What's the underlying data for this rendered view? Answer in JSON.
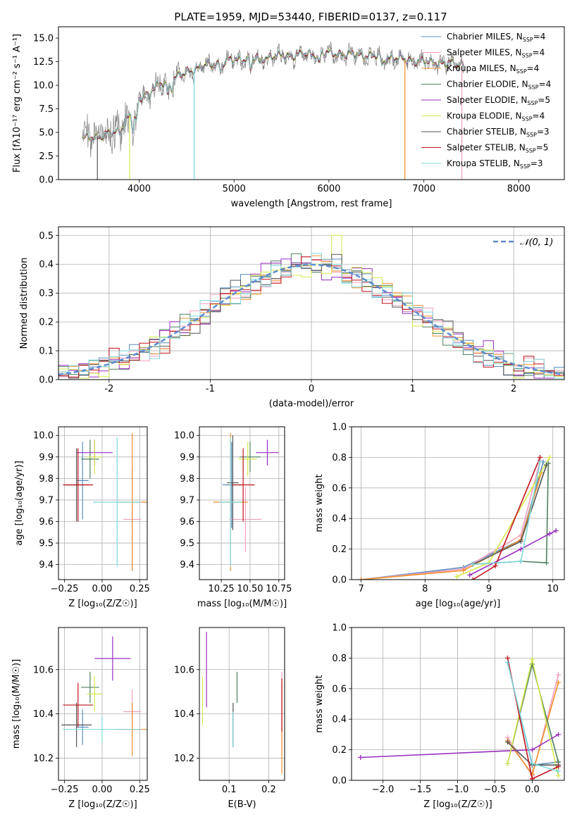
{
  "figure": {
    "title": "PLATE=1959, MJD=53440, FIBERID=0137, z=0.117"
  },
  "models": [
    {
      "label": "Chabrier MILES, N",
      "sub": "SSP",
      "n": "=4",
      "color": "#5b8fbf"
    },
    {
      "label": "Salpeter MILES, N",
      "sub": "SSP",
      "n": "=4",
      "color": "#f0a0c0"
    },
    {
      "label": "Kroupa MILES, N",
      "sub": "SSP",
      "n": "=4",
      "color": "#f28e2b"
    },
    {
      "label": "Chabrier ELODIE, N",
      "sub": "SSP",
      "n": "=4",
      "color": "#4f7f5f"
    },
    {
      "label": "Salpeter ELODIE, N",
      "sub": "SSP",
      "n": "=5",
      "color": "#9b30c0"
    },
    {
      "label": "Kroupa ELODIE, N",
      "sub": "SSP",
      "n": "=4",
      "color": "#d4e84a"
    },
    {
      "label": "Chabrier STELIB, N",
      "sub": "SSP",
      "n": "=3",
      "color": "#555555"
    },
    {
      "label": "Salpeter STELIB, N",
      "sub": "SSP",
      "n": "=5",
      "color": "#c0141c"
    },
    {
      "label": "Kroupa STELIB, N",
      "sub": "SSP",
      "n": "=3",
      "color": "#7fd8dc"
    }
  ],
  "chart_data": [
    {
      "id": "spectrum",
      "type": "line",
      "xlabel": "wavelength [Angstrom, rest frame]",
      "ylabel": "Flux [fλ10⁻¹⁷ erg cm⁻² s⁻¹ A⁻¹]",
      "xlim": [
        3150,
        8480
      ],
      "ylim": [
        0,
        16.2
      ],
      "xticks": [
        4000,
        5000,
        6000,
        7000,
        8000
      ],
      "yticks": [
        0.0,
        2.5,
        5.0,
        7.5,
        10.0,
        12.5,
        15.0
      ],
      "continuum": {
        "x": [
          3400,
          3600,
          3800,
          3950,
          4050,
          4300,
          4600,
          5000,
          5500,
          6000,
          6500,
          7000,
          7400
        ],
        "y": [
          4.4,
          4.6,
          5.2,
          7.6,
          9.2,
          10.4,
          11.8,
          12.7,
          13.1,
          13.4,
          13.1,
          12.5,
          12.2
        ]
      }
    },
    {
      "id": "residuals",
      "type": "histogram",
      "xlabel": "(data-model)/error",
      "ylabel": "Normed distribution",
      "xlim": [
        -2.5,
        2.5
      ],
      "ylim": [
        0,
        0.53
      ],
      "xticks": [
        -2,
        -1,
        0,
        1,
        2
      ],
      "yticks": [
        0.0,
        0.1,
        0.2,
        0.3,
        0.4,
        0.5
      ],
      "reference": {
        "name": "𝒩(0, 1)",
        "color": "#5b8bd0"
      }
    },
    {
      "id": "z-age",
      "type": "errorbar",
      "xlabel": "Z [log₁₀(Z/Z☉)]",
      "ylabel": "age  [log₁₀(age/yr)]",
      "xlim": [
        -0.29,
        0.3
      ],
      "ylim": [
        9.33,
        10.04
      ],
      "xticks": [
        -0.25,
        0.0,
        0.25
      ],
      "xticklabels": [
        "−0.25",
        "0.00",
        "0.25"
      ],
      "yticks": [
        9.4,
        9.5,
        9.6,
        9.7,
        9.8,
        9.9,
        10.0
      ],
      "points": [
        {
          "m": 0,
          "x": -0.13,
          "y": 9.79,
          "xe": 0.04,
          "ye": 0.18
        },
        {
          "m": 1,
          "x": 0.2,
          "y": 9.61,
          "xe": 0.06,
          "ye": 0.24
        },
        {
          "m": 2,
          "x": 0.2,
          "y": 9.69,
          "xe": 0.1,
          "ye": 0.32
        },
        {
          "m": 3,
          "x": -0.08,
          "y": 9.89,
          "xe": 0.06,
          "ye": 0.09
        },
        {
          "m": 4,
          "x": -0.05,
          "y": 9.92,
          "xe": 0.12,
          "ye": 0.06
        },
        {
          "m": 5,
          "x": -0.05,
          "y": 9.9,
          "xe": 0.05,
          "ye": 0.08
        },
        {
          "m": 6,
          "x": -0.17,
          "y": 9.77,
          "xe": 0.08,
          "ye": 0.17
        },
        {
          "m": 7,
          "x": -0.16,
          "y": 9.77,
          "xe": 0.1,
          "ye": 0.17
        },
        {
          "m": 8,
          "x": 0.1,
          "y": 9.69,
          "xe": 0.16,
          "ye": 0.3
        }
      ]
    },
    {
      "id": "mass-age",
      "type": "errorbar",
      "xlabel": "mass [log₁₀(M/M☉)]",
      "ylabel": "",
      "xlim": [
        10.06,
        10.8
      ],
      "ylim": [
        9.33,
        10.04
      ],
      "xticks": [
        10.25,
        10.5,
        10.75
      ],
      "xticklabels": [
        "10.25",
        "10.50",
        "10.75"
      ],
      "yticks": [
        9.4,
        9.5,
        9.6,
        9.7,
        9.8,
        9.9,
        10.0
      ],
      "points": [
        {
          "m": 0,
          "x": 10.34,
          "y": 9.77,
          "xe": 0.08,
          "ye": 0.2
        },
        {
          "m": 1,
          "x": 10.46,
          "y": 9.61,
          "xe": 0.14,
          "ye": 0.15
        },
        {
          "m": 2,
          "x": 10.33,
          "y": 9.69,
          "xe": 0.15,
          "ye": 0.32
        },
        {
          "m": 3,
          "x": 10.5,
          "y": 9.9,
          "xe": 0.09,
          "ye": 0.07
        },
        {
          "m": 4,
          "x": 10.65,
          "y": 9.92,
          "xe": 0.1,
          "ye": 0.06
        },
        {
          "m": 5,
          "x": 10.48,
          "y": 9.89,
          "xe": 0.08,
          "ye": 0.08
        },
        {
          "m": 6,
          "x": 10.35,
          "y": 9.78,
          "xe": 0.05,
          "ye": 0.22
        },
        {
          "m": 7,
          "x": 10.44,
          "y": 9.77,
          "xe": 0.1,
          "ye": 0.17
        },
        {
          "m": 8,
          "x": 10.33,
          "y": 9.69,
          "xe": 0.1,
          "ye": 0.3
        }
      ]
    },
    {
      "id": "age-weight",
      "type": "line",
      "xlabel": "age  [log₁₀(age/yr)]",
      "ylabel": "mass weight",
      "xlim": [
        6.85,
        10.18
      ],
      "ylim": [
        0,
        1.0
      ],
      "xticks": [
        7,
        8,
        9,
        10
      ],
      "yticks": [
        0.0,
        0.2,
        0.4,
        0.6,
        0.8,
        1.0
      ],
      "series": [
        {
          "m": 0,
          "x": [
            7.0,
            8.6,
            9.5,
            9.85
          ],
          "y": [
            0.0,
            0.08,
            0.26,
            0.77
          ]
        },
        {
          "m": 1,
          "x": [
            7.0,
            8.6,
            9.5,
            9.8
          ],
          "y": [
            0.0,
            0.07,
            0.29,
            0.78
          ]
        },
        {
          "m": 2,
          "x": [
            7.0,
            8.6,
            9.5,
            9.82
          ],
          "y": [
            0.0,
            0.06,
            0.26,
            0.7
          ]
        },
        {
          "m": 3,
          "x": [
            8.75,
            9.5,
            9.9,
            9.93
          ],
          "y": [
            0.1,
            0.12,
            0.11,
            0.76
          ]
        },
        {
          "m": 4,
          "x": [
            8.7,
            9.5,
            9.95,
            10.05
          ],
          "y": [
            0.03,
            0.2,
            0.3,
            0.32
          ]
        },
        {
          "m": 5,
          "x": [
            8.5,
            9.0,
            9.95
          ],
          "y": [
            0.02,
            0.11,
            0.8
          ]
        },
        {
          "m": 6,
          "x": [
            8.75,
            9.5,
            9.9
          ],
          "y": [
            0.1,
            0.25,
            0.75
          ]
        },
        {
          "m": 7,
          "x": [
            8.75,
            9.1,
            9.8
          ],
          "y": [
            0.0,
            0.09,
            0.8
          ]
        },
        {
          "m": 8,
          "x": [
            8.75,
            9.5,
            9.8
          ],
          "y": [
            0.1,
            0.12,
            0.77
          ]
        }
      ]
    },
    {
      "id": "z-mass",
      "type": "errorbar",
      "xlabel": "Z [log₁₀(Z/Z☉)]",
      "ylabel": "mass [log₁₀(M/M☉)]",
      "xlim": [
        -0.29,
        0.3
      ],
      "ylim": [
        10.1,
        10.79
      ],
      "xticks": [
        -0.25,
        0.0,
        0.25
      ],
      "xticklabels": [
        "−0.25",
        "0.00",
        "0.25"
      ],
      "yticks": [
        10.2,
        10.4,
        10.6
      ],
      "points": [
        {
          "m": 0,
          "x": -0.13,
          "y": 10.34,
          "xe": 0.04,
          "ye": 0.08
        },
        {
          "m": 1,
          "x": 0.2,
          "y": 10.41,
          "xe": 0.06,
          "ye": 0.1
        },
        {
          "m": 2,
          "x": 0.2,
          "y": 10.33,
          "xe": 0.1,
          "ye": 0.12
        },
        {
          "m": 3,
          "x": -0.08,
          "y": 10.52,
          "xe": 0.06,
          "ye": 0.07
        },
        {
          "m": 4,
          "x": 0.07,
          "y": 10.65,
          "xe": 0.12,
          "ye": 0.1
        },
        {
          "m": 5,
          "x": -0.05,
          "y": 10.49,
          "xe": 0.05,
          "ye": 0.08
        },
        {
          "m": 6,
          "x": -0.17,
          "y": 10.35,
          "xe": 0.1,
          "ye": 0.1
        },
        {
          "m": 7,
          "x": -0.16,
          "y": 10.44,
          "xe": 0.1,
          "ye": 0.1
        },
        {
          "m": 8,
          "x": 0.0,
          "y": 10.33,
          "xe": 0.26,
          "ye": 0.06
        }
      ]
    },
    {
      "id": "ebv-mass",
      "type": "errorbar",
      "xlabel": "E(B-V)",
      "ylabel": "",
      "xlim": [
        0.025,
        0.24
      ],
      "ylim": [
        10.1,
        10.79
      ],
      "xticks": [
        0.1,
        0.2
      ],
      "xticklabels": [
        "0.1",
        "0.2"
      ],
      "yticks": [
        10.2,
        10.4,
        10.6
      ],
      "points": [
        {
          "m": 0,
          "x": 0.11,
          "y": 10.34,
          "xe": 0,
          "ye": 0.08
        },
        {
          "m": 1,
          "x": 0.233,
          "y": 10.41,
          "xe": 0,
          "ye": 0.18
        },
        {
          "m": 2,
          "x": 0.233,
          "y": 10.33,
          "xe": 0,
          "ye": 0.2
        },
        {
          "m": 3,
          "x": 0.12,
          "y": 10.52,
          "xe": 0,
          "ye": 0.07
        },
        {
          "m": 4,
          "x": 0.043,
          "y": 10.6,
          "xe": 0,
          "ye": 0.17
        },
        {
          "m": 5,
          "x": 0.033,
          "y": 10.46,
          "xe": 0,
          "ye": 0.11
        },
        {
          "m": 6,
          "x": 0.11,
          "y": 10.35,
          "xe": 0,
          "ye": 0.1
        },
        {
          "m": 7,
          "x": 0.233,
          "y": 10.44,
          "xe": 0,
          "ye": 0.12
        },
        {
          "m": 8,
          "x": 0.11,
          "y": 10.33,
          "xe": 0,
          "ye": 0.08
        }
      ]
    },
    {
      "id": "z-weight",
      "type": "line",
      "xlabel": "Z [log₁₀(Z/Z☉)]",
      "ylabel": "mass weight",
      "xlim": [
        -2.42,
        0.43
      ],
      "ylim": [
        0,
        1.0
      ],
      "xticks": [
        -2.0,
        -1.5,
        -1.0,
        -0.5,
        0.0
      ],
      "xticklabels": [
        "−2.0",
        "−1.5",
        "−1.0",
        "−0.5",
        "0.0"
      ],
      "yticks": [
        0.0,
        0.2,
        0.4,
        0.6,
        0.8,
        1.0
      ],
      "series": [
        {
          "m": 0,
          "x": [
            -0.33,
            0.0,
            0.35
          ],
          "y": [
            0.77,
            0.1,
            0.12
          ]
        },
        {
          "m": 1,
          "x": [
            -0.33,
            0.0,
            0.35
          ],
          "y": [
            0.28,
            0.03,
            0.69
          ]
        },
        {
          "m": 2,
          "x": [
            -0.33,
            0.0,
            0.35
          ],
          "y": [
            0.26,
            0.04,
            0.64
          ]
        },
        {
          "m": 3,
          "x": [
            -0.33,
            0.0,
            0.35
          ],
          "y": [
            0.11,
            0.76,
            0.12
          ]
        },
        {
          "m": 4,
          "x": [
            -2.3,
            0.0,
            0.35
          ],
          "y": [
            0.15,
            0.2,
            0.3
          ]
        },
        {
          "m": 5,
          "x": [
            -0.33,
            0.0,
            0.35
          ],
          "y": [
            0.11,
            0.79,
            0.03
          ]
        },
        {
          "m": 6,
          "x": [
            -0.33,
            0.0,
            0.35
          ],
          "y": [
            0.25,
            0.1,
            0.1
          ]
        },
        {
          "m": 7,
          "x": [
            -0.33,
            0.0,
            0.35
          ],
          "y": [
            0.8,
            0.01,
            0.09
          ]
        },
        {
          "m": 8,
          "x": [
            -0.33,
            0.0,
            0.35
          ],
          "y": [
            0.77,
            0.11,
            0.06
          ]
        }
      ]
    }
  ]
}
